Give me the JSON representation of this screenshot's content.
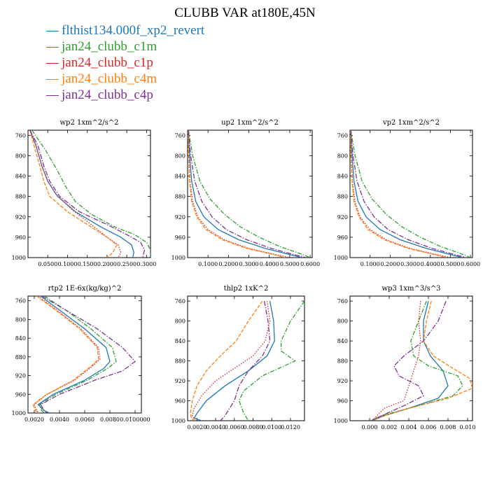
{
  "title": "CLUBB VAR at180E,45N",
  "legend": [
    {
      "label": "flthist134.000f_xp2_revert",
      "color": "#1f77b4",
      "dash": ""
    },
    {
      "label": "jan24_clubb_c1m",
      "color": "#2ca02c",
      "dash": "6,2,1.5,2"
    },
    {
      "label": "jan24_clubb_c1p",
      "color": "#d62728",
      "dash": "1.5,2"
    },
    {
      "label": "jan24_clubb_c4m",
      "color": "#ff7f0e",
      "dash": "5,2"
    },
    {
      "label": "jan24_clubb_c4p",
      "color": "#7b3294",
      "dash": "7,2,1.5,2"
    }
  ],
  "chart_data": [
    {
      "type": "line",
      "title": "wp2   1xm^2/s^2",
      "xlim": [
        0,
        0.31
      ],
      "ylim": [
        1000,
        750
      ],
      "xticks": [
        0.05,
        0.1,
        0.15,
        0.2,
        0.25,
        0.3
      ],
      "xtick_labels": [
        "0.0500",
        "0.1000",
        "0.1500",
        "0.2000",
        "0.2500",
        "0.3000"
      ],
      "yticks": [
        760,
        800,
        840,
        880,
        920,
        960,
        1000
      ],
      "ytick_labels": [
        "760",
        "800",
        "840",
        "880",
        "920",
        "960",
        "1000"
      ],
      "series": [
        {
          "name": "flthist134.000f_xp2_revert",
          "x": [
            0.005,
            0.02,
            0.035,
            0.05,
            0.075,
            0.12,
            0.185,
            0.235,
            0.262,
            0.268,
            0.265
          ],
          "y": [
            750,
            780,
            820,
            850,
            880,
            910,
            940,
            960,
            975,
            990,
            1000
          ]
        },
        {
          "name": "jan24_clubb_c1m",
          "x": [
            0.01,
            0.045,
            0.075,
            0.095,
            0.12,
            0.16,
            0.22,
            0.27,
            0.3,
            0.31,
            0.31
          ],
          "y": [
            750,
            790,
            830,
            860,
            890,
            915,
            940,
            955,
            970,
            985,
            1000
          ]
        },
        {
          "name": "jan24_clubb_c1p",
          "x": [
            0.005,
            0.02,
            0.035,
            0.05,
            0.07,
            0.11,
            0.16,
            0.2,
            0.228,
            0.235,
            0.228
          ],
          "y": [
            750,
            780,
            820,
            850,
            875,
            905,
            935,
            960,
            975,
            990,
            1000
          ]
        },
        {
          "name": "jan24_clubb_c4m",
          "x": [
            0.005,
            0.015,
            0.03,
            0.04,
            0.055,
            0.1,
            0.16,
            0.2,
            0.225,
            0.215,
            0.2
          ],
          "y": [
            750,
            780,
            820,
            850,
            880,
            910,
            940,
            960,
            975,
            990,
            1000
          ]
        },
        {
          "name": "jan24_clubb_c4p",
          "x": [
            0.005,
            0.025,
            0.04,
            0.055,
            0.08,
            0.13,
            0.2,
            0.25,
            0.285,
            0.295,
            0.29
          ],
          "y": [
            750,
            780,
            820,
            850,
            880,
            910,
            935,
            955,
            970,
            985,
            1000
          ]
        }
      ]
    },
    {
      "type": "line",
      "title": "up2   1xm^2/s^2",
      "xlim": [
        0,
        0.61
      ],
      "ylim": [
        1000,
        750
      ],
      "xticks": [
        0.1,
        0.2,
        0.3,
        0.4,
        0.5,
        0.6
      ],
      "xtick_labels": [
        "0.1000",
        "0.2000",
        "0.3000",
        "0.4000",
        "0.5000",
        "0.6000"
      ],
      "yticks": [
        760,
        800,
        840,
        880,
        920,
        960,
        1000
      ],
      "ytick_labels": [
        "760",
        "800",
        "840",
        "880",
        "920",
        "960",
        "1000"
      ],
      "series": [
        {
          "name": "flthist134.000f_xp2_revert",
          "x": [
            0.003,
            0.01,
            0.02,
            0.04,
            0.08,
            0.15,
            0.25,
            0.38,
            0.5,
            0.56
          ],
          "y": [
            750,
            800,
            850,
            890,
            920,
            945,
            965,
            982,
            994,
            1000
          ]
        },
        {
          "name": "jan24_clubb_c1m",
          "x": [
            0.004,
            0.025,
            0.06,
            0.11,
            0.18,
            0.26,
            0.35,
            0.45,
            0.55,
            0.6
          ],
          "y": [
            750,
            800,
            850,
            885,
            915,
            940,
            960,
            978,
            992,
            1000
          ]
        },
        {
          "name": "jan24_clubb_c1p",
          "x": [
            0.002,
            0.006,
            0.012,
            0.025,
            0.05,
            0.1,
            0.18,
            0.3,
            0.43,
            0.5
          ],
          "y": [
            750,
            800,
            850,
            890,
            920,
            945,
            965,
            982,
            994,
            1000
          ]
        },
        {
          "name": "jan24_clubb_c4m",
          "x": [
            0.002,
            0.005,
            0.01,
            0.02,
            0.045,
            0.09,
            0.17,
            0.29,
            0.42,
            0.48
          ],
          "y": [
            750,
            800,
            850,
            890,
            920,
            945,
            965,
            982,
            994,
            1000
          ]
        },
        {
          "name": "jan24_clubb_c4p",
          "x": [
            0.003,
            0.015,
            0.035,
            0.07,
            0.12,
            0.19,
            0.29,
            0.41,
            0.52,
            0.58
          ],
          "y": [
            750,
            800,
            850,
            890,
            920,
            945,
            965,
            982,
            994,
            1000
          ]
        }
      ]
    },
    {
      "type": "line",
      "title": "vp2   1xm^2/s^2",
      "xlim": [
        0,
        0.61
      ],
      "ylim": [
        1000,
        750
      ],
      "xticks": [
        0.1,
        0.2,
        0.3,
        0.4,
        0.5,
        0.6
      ],
      "xtick_labels": [
        "0.1000",
        "0.2000",
        "0.3000",
        "0.4000",
        "0.5000",
        "0.6000"
      ],
      "yticks": [
        760,
        800,
        840,
        880,
        920,
        960,
        1000
      ],
      "ytick_labels": [
        "760",
        "800",
        "840",
        "880",
        "920",
        "960",
        "1000"
      ],
      "series": [
        {
          "name": "flthist134.000f_xp2_revert",
          "x": [
            0.003,
            0.01,
            0.02,
            0.04,
            0.08,
            0.15,
            0.25,
            0.38,
            0.5,
            0.56
          ],
          "y": [
            750,
            800,
            850,
            890,
            920,
            945,
            965,
            982,
            994,
            1000
          ]
        },
        {
          "name": "jan24_clubb_c1m",
          "x": [
            0.004,
            0.025,
            0.06,
            0.11,
            0.18,
            0.26,
            0.35,
            0.45,
            0.55,
            0.6
          ],
          "y": [
            750,
            800,
            850,
            885,
            915,
            940,
            960,
            978,
            992,
            1000
          ]
        },
        {
          "name": "jan24_clubb_c1p",
          "x": [
            0.002,
            0.006,
            0.012,
            0.025,
            0.05,
            0.1,
            0.18,
            0.3,
            0.43,
            0.5
          ],
          "y": [
            750,
            800,
            850,
            890,
            920,
            945,
            965,
            982,
            994,
            1000
          ]
        },
        {
          "name": "jan24_clubb_c4m",
          "x": [
            0.002,
            0.005,
            0.01,
            0.02,
            0.045,
            0.09,
            0.17,
            0.29,
            0.42,
            0.48
          ],
          "y": [
            750,
            800,
            850,
            890,
            920,
            945,
            965,
            982,
            994,
            1000
          ]
        },
        {
          "name": "jan24_clubb_c4p",
          "x": [
            0.003,
            0.015,
            0.035,
            0.07,
            0.12,
            0.19,
            0.29,
            0.41,
            0.52,
            0.58
          ],
          "y": [
            750,
            800,
            850,
            890,
            920,
            945,
            965,
            982,
            994,
            1000
          ]
        }
      ]
    },
    {
      "type": "line",
      "title": "rtp2   1E-6x(kg/kg)^2",
      "xlim": [
        0.0015,
        0.0105
      ],
      "ylim": [
        1000,
        750
      ],
      "xticks": [
        0.002,
        0.004,
        0.006,
        0.008,
        0.01
      ],
      "xtick_labels": [
        "0.0020",
        "0.0040",
        "0.0060",
        "0.0080",
        "0.0100000"
      ],
      "yticks": [
        760,
        800,
        840,
        880,
        920,
        960,
        1000
      ],
      "ytick_labels": [
        "760",
        "800",
        "840",
        "880",
        "920",
        "960",
        "1000"
      ],
      "series": [
        {
          "name": "flthist134.000f_xp2_revert",
          "x": [
            0.0025,
            0.004,
            0.006,
            0.0077,
            0.008,
            0.0075,
            0.006,
            0.0035,
            0.0023,
            0.0028,
            0.0032
          ],
          "y": [
            750,
            780,
            820,
            860,
            890,
            905,
            930,
            960,
            982,
            995,
            1000
          ]
        },
        {
          "name": "jan24_clubb_c1m",
          "x": [
            0.0028,
            0.0045,
            0.0065,
            0.0082,
            0.0085,
            0.0078,
            0.0062,
            0.0037,
            0.0024,
            0.0026,
            0.0028
          ],
          "y": [
            750,
            780,
            820,
            860,
            890,
            905,
            930,
            960,
            982,
            995,
            1000
          ]
        },
        {
          "name": "jan24_clubb_c1p",
          "x": [
            0.0023,
            0.0038,
            0.0057,
            0.0071,
            0.0072,
            0.0066,
            0.0052,
            0.003,
            0.002,
            0.0022,
            0.0024
          ],
          "y": [
            750,
            780,
            820,
            860,
            885,
            900,
            930,
            960,
            982,
            995,
            1000
          ]
        },
        {
          "name": "jan24_clubb_c4m",
          "x": [
            0.0022,
            0.0037,
            0.0056,
            0.007,
            0.0071,
            0.0065,
            0.0051,
            0.003,
            0.0019,
            0.0021,
            0.0023
          ],
          "y": [
            750,
            780,
            820,
            860,
            885,
            900,
            930,
            960,
            982,
            995,
            1000
          ]
        },
        {
          "name": "jan24_clubb_c4p",
          "x": [
            0.0026,
            0.0045,
            0.007,
            0.009,
            0.01,
            0.009,
            0.0068,
            0.004,
            0.0025,
            0.0028,
            0.003
          ],
          "y": [
            750,
            780,
            820,
            860,
            890,
            910,
            930,
            960,
            982,
            995,
            1000
          ]
        }
      ]
    },
    {
      "type": "line",
      "title": "thlp2   1xK^2",
      "xlim": [
        0.001,
        0.0135
      ],
      "ylim": [
        1000,
        750
      ],
      "xticks": [
        0.002,
        0.004,
        0.006,
        0.008,
        0.01,
        0.012
      ],
      "xtick_labels": [
        "0.0020",
        "0.0040",
        "0.0060",
        "0.0080",
        "0.0100",
        "0.0120"
      ],
      "yticks": [
        760,
        800,
        840,
        880,
        920,
        960,
        1000
      ],
      "ytick_labels": [
        "760",
        "800",
        "840",
        "880",
        "920",
        "960",
        "1000"
      ],
      "series": [
        {
          "name": "flthist134.000f_xp2_revert",
          "x": [
            0.0098,
            0.0102,
            0.0103,
            0.0095,
            0.0075,
            0.005,
            0.003,
            0.002,
            0.0017,
            0.0025
          ],
          "y": [
            760,
            800,
            840,
            870,
            900,
            930,
            960,
            985,
            995,
            1000
          ]
        },
        {
          "name": "jan24_clubb_c1m",
          "x": [
            0.0135,
            0.012,
            0.011,
            0.011,
            0.0125,
            0.009,
            0.007,
            0.0065,
            0.007,
            0.0075
          ],
          "y": [
            760,
            800,
            840,
            860,
            880,
            910,
            940,
            960,
            985,
            1000
          ]
        },
        {
          "name": "jan24_clubb_c1p",
          "x": [
            0.0095,
            0.0098,
            0.0093,
            0.008,
            0.006,
            0.004,
            0.0025,
            0.0017,
            0.0015,
            0.0018
          ],
          "y": [
            760,
            800,
            840,
            870,
            895,
            920,
            950,
            975,
            990,
            1000
          ]
        },
        {
          "name": "jan24_clubb_c4m",
          "x": [
            0.009,
            0.0075,
            0.0062,
            0.0045,
            0.003,
            0.002,
            0.0015,
            0.0013,
            0.0014,
            0.0018
          ],
          "y": [
            760,
            800,
            840,
            870,
            900,
            930,
            960,
            985,
            995,
            1000
          ]
        },
        {
          "name": "jan24_clubb_c4p",
          "x": [
            0.0092,
            0.0096,
            0.0098,
            0.009,
            0.0075,
            0.0065,
            0.006,
            0.0055,
            0.005,
            0.0045
          ],
          "y": [
            760,
            800,
            840,
            870,
            900,
            930,
            960,
            975,
            990,
            1000
          ]
        }
      ]
    },
    {
      "type": "line",
      "title": "wp3   1xm^3/s^3",
      "xlim": [
        -0.002,
        0.0105
      ],
      "ylim": [
        1000,
        750
      ],
      "xticks": [
        0,
        0.002,
        0.004,
        0.006,
        0.008,
        0.01
      ],
      "xtick_labels": [
        "0.000",
        "0.002",
        "0.004",
        "0.006",
        "0.008",
        "0.010"
      ],
      "yticks": [
        760,
        800,
        840,
        880,
        920,
        960,
        1000
      ],
      "ytick_labels": [
        "760",
        "800",
        "840",
        "880",
        "920",
        "960",
        "1000"
      ],
      "series": [
        {
          "name": "flthist134.000f_xp2_revert",
          "x": [
            0.006,
            0.0055,
            0.0055,
            0.0062,
            0.0075,
            0.008,
            0.007,
            0.004,
            0.0015,
            0.0005,
            0.0002
          ],
          "y": [
            760,
            800,
            840,
            870,
            900,
            930,
            955,
            975,
            990,
            998,
            1000
          ]
        },
        {
          "name": "jan24_clubb_c1m",
          "x": [
            0.0058,
            0.005,
            0.0042,
            0.0045,
            0.006,
            0.009,
            0.0095,
            0.0085,
            0.005,
            0.0015,
            0.0005,
            0.0
          ],
          "y": [
            760,
            800,
            840,
            870,
            890,
            910,
            930,
            950,
            970,
            988,
            996,
            1000
          ]
        },
        {
          "name": "jan24_clubb_c1p",
          "x": [
            0.0052,
            0.005,
            0.0052,
            0.005,
            0.0045,
            0.004,
            0.0035,
            0.0015,
            0.001,
            0.0005,
            0.0002
          ],
          "y": [
            760,
            800,
            840,
            870,
            900,
            930,
            960,
            975,
            985,
            995,
            1000
          ]
        },
        {
          "name": "jan24_clubb_c4m",
          "x": [
            0.0063,
            0.0058,
            0.0055,
            0.0065,
            0.0085,
            0.0102,
            0.0105,
            0.008,
            0.004,
            0.0012,
            0.0003
          ],
          "y": [
            760,
            800,
            840,
            870,
            895,
            915,
            935,
            955,
            975,
            992,
            1000
          ]
        },
        {
          "name": "jan24_clubb_c4p",
          "x": [
            0.0078,
            0.007,
            0.0055,
            0.0035,
            0.0025,
            0.003,
            0.005,
            0.0055,
            0.0035,
            0.0012,
            0.0002
          ],
          "y": [
            760,
            800,
            840,
            870,
            890,
            910,
            930,
            950,
            970,
            990,
            1000
          ]
        }
      ]
    }
  ]
}
